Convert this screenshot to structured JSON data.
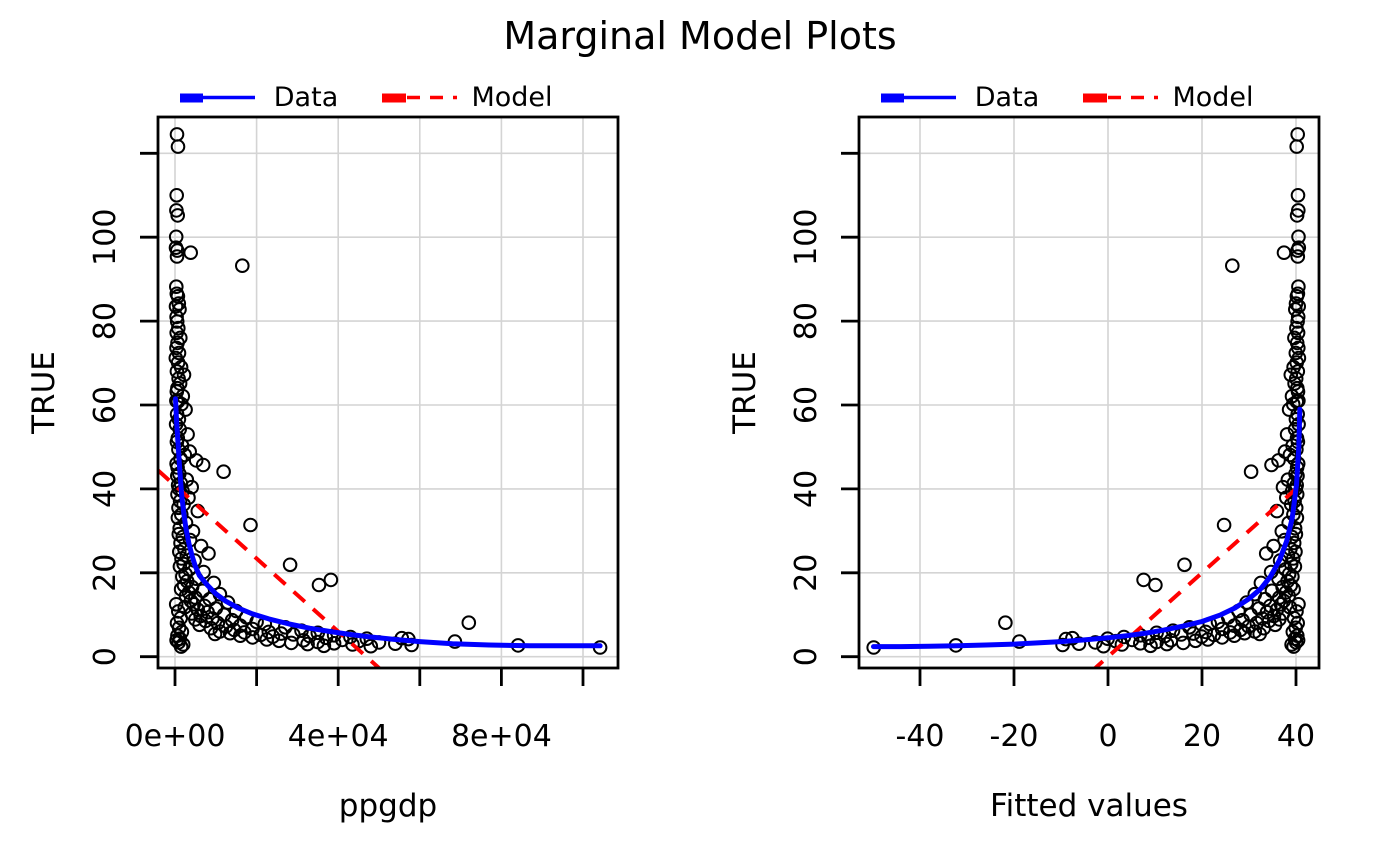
{
  "title": "Marginal Model Plots",
  "legend": {
    "data_label": "Data",
    "model_label": "Model"
  },
  "colors": {
    "data_smooth": "#0000ff",
    "model_line": "#ff0000",
    "points": "#000000",
    "grid": "#d4d4d4",
    "box": "#000000",
    "background": "#ffffff"
  },
  "chart_data": {
    "type": "scatter",
    "description": "Two marginal model plot panels; same response plotted against predictor ppgdp and against fitted values. Open-circle points, blue loess data smooth, red dashed model line.",
    "points_ppgdp_response": [
      [
        502,
        124.5
      ],
      [
        740,
        121.6
      ],
      [
        420,
        110
      ],
      [
        350,
        106.4
      ],
      [
        650,
        105.2
      ],
      [
        300,
        100.1
      ],
      [
        237,
        97.5
      ],
      [
        560,
        96.8
      ],
      [
        3850,
        96.3
      ],
      [
        480,
        95.4
      ],
      [
        16500,
        93.2
      ],
      [
        330,
        88.2
      ],
      [
        450,
        86.5
      ],
      [
        700,
        85.9
      ],
      [
        920,
        84.2
      ],
      [
        250,
        83.5
      ],
      [
        1100,
        82.8
      ],
      [
        380,
        81
      ],
      [
        540,
        79.9
      ],
      [
        810,
        78.3
      ],
      [
        410,
        77.2
      ],
      [
        1300,
        76
      ],
      [
        620,
        74.8
      ],
      [
        360,
        73.6
      ],
      [
        980,
        72.4
      ],
      [
        200,
        71.2
      ],
      [
        760,
        70.1
      ],
      [
        1500,
        69
      ],
      [
        470,
        68
      ],
      [
        2200,
        67.2
      ],
      [
        880,
        66.3
      ],
      [
        1250,
        65.1
      ],
      [
        590,
        64
      ],
      [
        430,
        63.2
      ],
      [
        1900,
        62.1
      ],
      [
        340,
        61
      ],
      [
        720,
        60.8
      ],
      [
        1600,
        60.2
      ],
      [
        2600,
        58.9
      ],
      [
        510,
        57.8
      ],
      [
        950,
        56.6
      ],
      [
        280,
        55.4
      ],
      [
        1150,
        54.2
      ],
      [
        3100,
        53
      ],
      [
        680,
        52.1
      ],
      [
        460,
        51.2
      ],
      [
        1750,
        50.3
      ],
      [
        830,
        49.4
      ],
      [
        3600,
        48.9
      ],
      [
        2400,
        48.1
      ],
      [
        1350,
        47.2
      ],
      [
        5200,
        46.8
      ],
      [
        390,
        46
      ],
      [
        6900,
        45.7
      ],
      [
        640,
        45.1
      ],
      [
        11900,
        44.1
      ],
      [
        1050,
        43.6
      ],
      [
        560,
        43.1
      ],
      [
        2900,
        42.2
      ],
      [
        1450,
        41.3
      ],
      [
        760,
        40.9
      ],
      [
        4100,
        40.4
      ],
      [
        980,
        40
      ],
      [
        1850,
        39.5
      ],
      [
        620,
        38.7
      ],
      [
        3300,
        37.9
      ],
      [
        1250,
        37.1
      ],
      [
        2100,
        36.3
      ],
      [
        860,
        35.5
      ],
      [
        5600,
        34.7
      ],
      [
        1550,
        33.9
      ],
      [
        710,
        33.1
      ],
      [
        2700,
        31.9
      ],
      [
        18500,
        31.4
      ],
      [
        1150,
        30.6
      ],
      [
        4400,
        29.9
      ],
      [
        940,
        29.2
      ],
      [
        1900,
        28.5
      ],
      [
        3700,
        27.8
      ],
      [
        1350,
        27.1
      ],
      [
        6400,
        26.4
      ],
      [
        2300,
        25.7
      ],
      [
        1050,
        25
      ],
      [
        8200,
        24.6
      ],
      [
        2900,
        24.1
      ],
      [
        1600,
        23.4
      ],
      [
        4800,
        22.9
      ],
      [
        2100,
        22.1
      ],
      [
        28200,
        21.9
      ],
      [
        1200,
        21.5
      ],
      [
        3500,
        20.8
      ],
      [
        7000,
        20.2
      ],
      [
        2600,
        19.7
      ],
      [
        1800,
        19.1
      ],
      [
        5200,
        18.6
      ],
      [
        38200,
        18.3
      ],
      [
        3000,
        18
      ],
      [
        9500,
        17.6
      ],
      [
        35300,
        17.1
      ],
      [
        2200,
        17
      ],
      [
        4200,
        16.6
      ],
      [
        1500,
        16.1
      ],
      [
        6800,
        15.7
      ],
      [
        3400,
        15.3
      ],
      [
        11000,
        14.9
      ],
      [
        2700,
        14.5
      ],
      [
        5000,
        14.1
      ],
      [
        8500,
        13.7
      ],
      [
        3900,
        13.3
      ],
      [
        13000,
        12.9
      ],
      [
        4600,
        12.5
      ],
      [
        7200,
        12.1
      ],
      [
        2400,
        11.8
      ],
      [
        10000,
        11.5
      ],
      [
        5600,
        11.2
      ],
      [
        15000,
        10.9
      ],
      [
        8000,
        10.6
      ],
      [
        4100,
        10.3
      ],
      [
        12000,
        10
      ],
      [
        6300,
        9.7
      ],
      [
        17500,
        9.4
      ],
      [
        9200,
        9.1
      ],
      [
        5000,
        8.9
      ],
      [
        14000,
        8.7
      ],
      [
        7500,
        8.5
      ],
      [
        20000,
        8.3
      ],
      [
        72000,
        8.1
      ],
      [
        10500,
        8
      ],
      [
        22000,
        7.8
      ],
      [
        6000,
        7.6
      ],
      [
        16000,
        7.4
      ],
      [
        12500,
        7.2
      ],
      [
        27000,
        7
      ],
      [
        8800,
        6.8
      ],
      [
        19000,
        6.6
      ],
      [
        14500,
        6.4
      ],
      [
        31000,
        6.2
      ],
      [
        11000,
        6
      ],
      [
        23000,
        5.9
      ],
      [
        17000,
        5.8
      ],
      [
        35000,
        5.7
      ],
      [
        13500,
        5.6
      ],
      [
        26000,
        5.5
      ],
      [
        9800,
        5.4
      ],
      [
        29000,
        5.3
      ],
      [
        21000,
        5.2
      ],
      [
        39000,
        5.1
      ],
      [
        16000,
        5
      ],
      [
        33000,
        4.9
      ],
      [
        24000,
        4.8
      ],
      [
        43000,
        4.7
      ],
      [
        19000,
        4.6
      ],
      [
        37000,
        4.5
      ],
      [
        55600,
        4.4
      ],
      [
        47000,
        4.3
      ],
      [
        57200,
        4.2
      ],
      [
        22500,
        4.1
      ],
      [
        41000,
        4
      ],
      [
        31500,
        3.9
      ],
      [
        25500,
        3.8
      ],
      [
        45000,
        3.7
      ],
      [
        68600,
        3.6
      ],
      [
        35000,
        3.5
      ],
      [
        50000,
        3.4
      ],
      [
        28500,
        3.3
      ],
      [
        39000,
        3.2
      ],
      [
        54000,
        3.1
      ],
      [
        32500,
        3
      ],
      [
        43500,
        2.9
      ],
      [
        58000,
        2.8
      ],
      [
        84100,
        2.7
      ],
      [
        36500,
        2.6
      ],
      [
        48000,
        2.5
      ],
      [
        104200,
        2.2
      ],
      [
        300,
        12.5
      ],
      [
        800,
        10.8
      ],
      [
        1400,
        9.2
      ],
      [
        500,
        8
      ],
      [
        1000,
        6.9
      ],
      [
        1700,
        5.9
      ],
      [
        600,
        5
      ],
      [
        1200,
        4.3
      ],
      [
        400,
        3.9
      ],
      [
        900,
        3.4
      ],
      [
        2000,
        2.9
      ],
      [
        1500,
        2.4
      ]
    ],
    "panels": [
      {
        "xlabel": "ppgdp",
        "ylabel": "TRUE",
        "x_source": "ppgdp",
        "xlim": [
          -4166,
          108578
        ],
        "ylim": [
          -2.8,
          128.7
        ],
        "grid": true,
        "legend_position": "top",
        "x_ticks": [
          {
            "v": 0,
            "label": "0e+00"
          },
          {
            "v": 20000,
            "label": ""
          },
          {
            "v": 40000,
            "label": "4e+04"
          },
          {
            "v": 60000,
            "label": ""
          },
          {
            "v": 80000,
            "label": "8e+04"
          },
          {
            "v": 100000,
            "label": ""
          }
        ],
        "y_ticks": [
          {
            "v": 0,
            "label": "0"
          },
          {
            "v": 20,
            "label": "20"
          },
          {
            "v": 40,
            "label": "40"
          },
          {
            "v": 60,
            "label": "60"
          },
          {
            "v": 80,
            "label": "80"
          },
          {
            "v": 100,
            "label": "100"
          },
          {
            "v": 120,
            "label": ""
          }
        ],
        "smooth": [
          [
            120,
            61.5
          ],
          [
            400,
            56
          ],
          [
            800,
            50
          ],
          [
            1200,
            44
          ],
          [
            1600,
            39
          ],
          [
            2100,
            34.5
          ],
          [
            2700,
            30.5
          ],
          [
            3400,
            27
          ],
          [
            4200,
            24
          ],
          [
            5000,
            21.5
          ],
          [
            6000,
            19.3
          ],
          [
            8000,
            17
          ],
          [
            10000,
            15
          ],
          [
            12500,
            13.2
          ],
          [
            15500,
            11.6
          ],
          [
            19000,
            10.2
          ],
          [
            23000,
            9
          ],
          [
            28000,
            7.8
          ],
          [
            33000,
            6.8
          ],
          [
            38000,
            6
          ],
          [
            43000,
            5.3
          ],
          [
            48000,
            4.7
          ],
          [
            54000,
            4.1
          ],
          [
            60000,
            3.6
          ],
          [
            68000,
            3.1
          ],
          [
            77000,
            2.8
          ],
          [
            87000,
            2.6
          ],
          [
            104200,
            2.6
          ]
        ],
        "model_line": {
          "intercept": 40.8,
          "slope": -0.00087
        }
      },
      {
        "xlabel": "Fitted values",
        "ylabel": "TRUE",
        "x_source": "fitted",
        "xlim": [
          -53,
          44.9
        ],
        "ylim": [
          -2.8,
          128.7
        ],
        "grid": true,
        "legend_position": "top",
        "x_ticks": [
          {
            "v": -40,
            "label": "-40"
          },
          {
            "v": -20,
            "label": "-20"
          },
          {
            "v": 0,
            "label": "0"
          },
          {
            "v": 20,
            "label": "20"
          },
          {
            "v": 40,
            "label": "40"
          }
        ],
        "y_ticks": [
          {
            "v": 0,
            "label": "0"
          },
          {
            "v": 20,
            "label": "20"
          },
          {
            "v": 40,
            "label": "40"
          },
          {
            "v": 60,
            "label": "60"
          },
          {
            "v": 80,
            "label": "80"
          },
          {
            "v": 100,
            "label": "100"
          },
          {
            "v": 120,
            "label": ""
          }
        ],
        "smooth": [
          [
            -49.9,
            2.4
          ],
          [
            -44,
            2.4
          ],
          [
            -38,
            2.5
          ],
          [
            -32,
            2.6
          ],
          [
            -26,
            2.8
          ],
          [
            -20,
            3.0
          ],
          [
            -15,
            3.3
          ],
          [
            -10,
            3.6
          ],
          [
            -5,
            4.0
          ],
          [
            0,
            4.5
          ],
          [
            4,
            5.0
          ],
          [
            8,
            5.6
          ],
          [
            12,
            6.4
          ],
          [
            16,
            7.3
          ],
          [
            20,
            8.4
          ],
          [
            24,
            10.0
          ],
          [
            27,
            11.6
          ],
          [
            30,
            13.8
          ],
          [
            32.5,
            16.2
          ],
          [
            34.5,
            19
          ],
          [
            36.5,
            23
          ],
          [
            38,
            27.5
          ],
          [
            39.2,
            33
          ],
          [
            40.1,
            41
          ],
          [
            40.6,
            50
          ],
          [
            40.8,
            59
          ]
        ],
        "model_line": {
          "intercept": 0,
          "slope": 1,
          "x_range": [
            -53,
            40.8
          ]
        }
      }
    ],
    "fitted_model": {
      "formula": "fitted = intercept + slope * ppgdp",
      "intercept": 40.8,
      "slope": -0.00087
    }
  }
}
